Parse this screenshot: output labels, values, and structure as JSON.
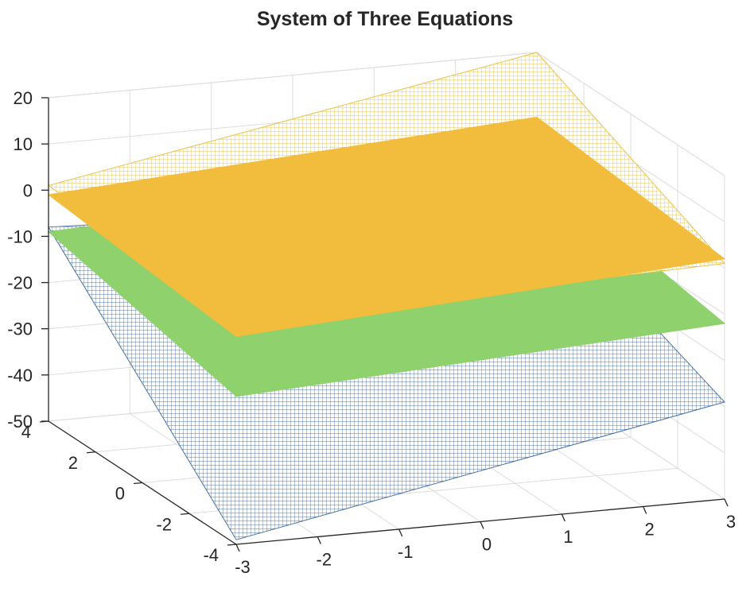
{
  "chart_data": {
    "type": "surface3d",
    "title": "System of Three Equations",
    "xlabel": "",
    "ylabel": "",
    "zlabel": "",
    "x_ticks": [
      -3,
      -2,
      -1,
      0,
      1,
      2,
      3
    ],
    "y_ticks": [
      -4,
      -2,
      0,
      2,
      4
    ],
    "z_ticks": [
      20,
      10,
      0,
      -10,
      -20,
      -30,
      -40,
      -50
    ],
    "x_tick_labels": [
      "-3",
      "-2",
      "-1",
      "0",
      "1",
      "2",
      "3"
    ],
    "y_tick_labels": [
      "-4",
      "-2",
      "0",
      "2",
      "4"
    ],
    "z_tick_labels": [
      "20",
      "10",
      "0",
      "-10",
      "-20",
      "-30",
      "-40",
      "-50"
    ],
    "xlim": [
      -3,
      3
    ],
    "ylim": [
      -4,
      4
    ],
    "zlim": [
      -50,
      20
    ],
    "grid": true,
    "series": [
      {
        "style": "mesh",
        "color": "#4a73a8",
        "corners": [
          {
            "x": -3,
            "y": -4,
            "z": -49
          },
          {
            "x": 3,
            "y": -4,
            "z": -29
          },
          {
            "x": 3,
            "y": 4,
            "z": -12
          },
          {
            "x": -3,
            "y": 4,
            "z": -8
          }
        ]
      },
      {
        "style": "solid",
        "color": "#8fd16c",
        "corners": [
          {
            "x": -3,
            "y": -4,
            "z": -18
          },
          {
            "x": 3,
            "y": -4,
            "z": -12
          },
          {
            "x": 3,
            "y": 4,
            "z": -5
          },
          {
            "x": -3,
            "y": 4,
            "z": -9
          }
        ]
      },
      {
        "style": "mesh",
        "color": "#e8c24a",
        "corners": [
          {
            "x": -3,
            "y": -4,
            "z": -2
          },
          {
            "x": 3,
            "y": -4,
            "z": 1
          },
          {
            "x": 3,
            "y": 4,
            "z": 20
          },
          {
            "x": -3,
            "y": 4,
            "z": 1
          }
        ]
      },
      {
        "style": "solid",
        "color": "#f2bc3d",
        "corners": [
          {
            "x": -3,
            "y": -4,
            "z": -5
          },
          {
            "x": 3,
            "y": -4,
            "z": 2
          },
          {
            "x": 3,
            "y": 4,
            "z": 6
          },
          {
            "x": -3,
            "y": 4,
            "z": -1
          }
        ]
      }
    ]
  }
}
